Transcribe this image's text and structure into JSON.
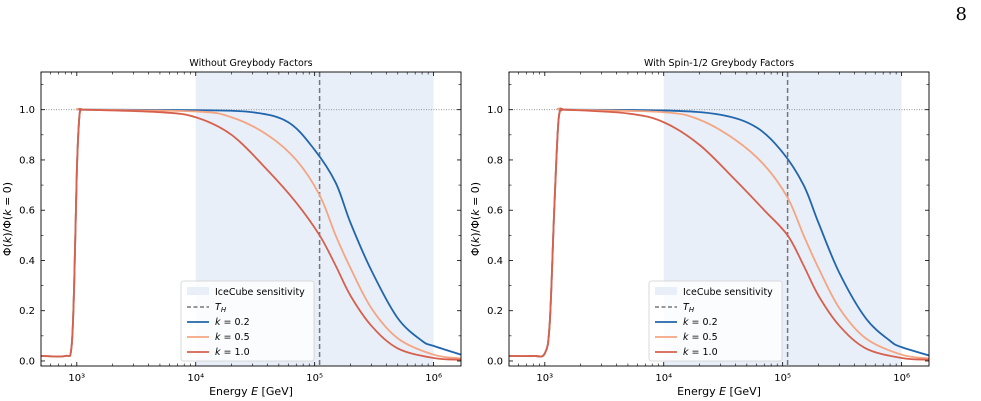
{
  "page": {
    "number": "8"
  },
  "chart_data": [
    {
      "type": "line",
      "title": "Without Greybody Factors",
      "xlabel": "Energy E [GeV]",
      "ylabel": "Φ(k)/Φ(k = 0)",
      "xscale": "log",
      "xlim": [
        500,
        1700000
      ],
      "ylim": [
        -0.02,
        1.15
      ],
      "xticks": [
        "10³",
        "10⁴",
        "10⁵",
        "10⁶"
      ],
      "yticks": [
        "0.0",
        "0.2",
        "0.4",
        "0.6",
        "0.8",
        "1.0"
      ],
      "shaded_band": {
        "x": [
          10000,
          1000000
        ],
        "label": "IceCube sensitivity",
        "color": "#e9eff8"
      },
      "vline": {
        "x": 110000,
        "label": "T_H",
        "color": "#777777"
      },
      "hline": {
        "y": 1.0,
        "style": "dotted"
      },
      "legend_position": "lower-center",
      "series": [
        {
          "name": "k = 0.2",
          "k": 0.2,
          "color": "#2166ac",
          "x": [
            500,
            800,
            900,
            950,
            1000,
            1050,
            1100,
            1200,
            10000,
            30000,
            60000,
            100000,
            150000,
            200000,
            300000,
            500000,
            800000,
            1000000,
            1700000
          ],
          "y": [
            0.02,
            0.02,
            0.05,
            0.3,
            0.75,
            0.97,
            1.0,
            1.0,
            0.998,
            0.99,
            0.95,
            0.84,
            0.71,
            0.55,
            0.36,
            0.17,
            0.08,
            0.06,
            0.025
          ]
        },
        {
          "name": "k = 0.5",
          "k": 0.5,
          "color": "#f4a582",
          "x": [
            500,
            800,
            900,
            950,
            1000,
            1050,
            1100,
            1200,
            10000,
            20000,
            40000,
            70000,
            110000,
            150000,
            200000,
            300000,
            500000,
            1000000,
            1700000
          ],
          "y": [
            0.02,
            0.02,
            0.05,
            0.3,
            0.75,
            0.97,
            1.0,
            1.0,
            0.993,
            0.97,
            0.9,
            0.8,
            0.66,
            0.5,
            0.37,
            0.21,
            0.09,
            0.025,
            0.01
          ]
        },
        {
          "name": "k = 1.0",
          "k": 1.0,
          "color": "#d6604d",
          "x": [
            500,
            800,
            900,
            950,
            1000,
            1050,
            1100,
            1200,
            5000,
            10000,
            20000,
            40000,
            70000,
            110000,
            150000,
            200000,
            300000,
            500000,
            1000000,
            1700000
          ],
          "y": [
            0.02,
            0.02,
            0.05,
            0.3,
            0.75,
            0.97,
            1.0,
            1.0,
            0.99,
            0.97,
            0.9,
            0.76,
            0.63,
            0.5,
            0.38,
            0.26,
            0.14,
            0.05,
            0.012,
            0.005
          ]
        }
      ]
    },
    {
      "type": "line",
      "title": "With Spin-1/2 Greybody Factors",
      "xlabel": "Energy E [GeV]",
      "ylabel": "Φ(k)/Φ(k = 0)",
      "xscale": "log",
      "xlim": [
        500,
        1700000
      ],
      "ylim": [
        -0.02,
        1.15
      ],
      "xticks": [
        "10³",
        "10⁴",
        "10⁵",
        "10⁶"
      ],
      "yticks": [
        "0.0",
        "0.2",
        "0.4",
        "0.6",
        "0.8",
        "1.0"
      ],
      "shaded_band": {
        "x": [
          10000,
          1000000
        ],
        "label": "IceCube sensitivity",
        "color": "#e9eff8"
      },
      "vline": {
        "x": 110000,
        "label": "T_H",
        "color": "#777777"
      },
      "hline": {
        "y": 1.0,
        "style": "dotted"
      },
      "legend_position": "lower-center",
      "series": [
        {
          "name": "k = 0.2",
          "k": 0.2,
          "color": "#2166ac",
          "x": [
            500,
            800,
            1000,
            1100,
            1200,
            1300,
            1400,
            1500,
            10000,
            30000,
            60000,
            100000,
            150000,
            200000,
            300000,
            500000,
            800000,
            1000000,
            1700000
          ],
          "y": [
            0.02,
            0.02,
            0.03,
            0.15,
            0.6,
            0.95,
            1.0,
            1.0,
            0.997,
            0.98,
            0.93,
            0.83,
            0.7,
            0.55,
            0.35,
            0.17,
            0.08,
            0.055,
            0.022
          ]
        },
        {
          "name": "k = 0.5",
          "k": 0.5,
          "color": "#f4a582",
          "x": [
            500,
            800,
            1000,
            1100,
            1200,
            1300,
            1400,
            1500,
            10000,
            20000,
            40000,
            70000,
            110000,
            150000,
            200000,
            300000,
            500000,
            1000000,
            1700000
          ],
          "y": [
            0.02,
            0.02,
            0.03,
            0.15,
            0.6,
            0.95,
            1.0,
            1.0,
            0.99,
            0.96,
            0.88,
            0.78,
            0.65,
            0.5,
            0.37,
            0.21,
            0.09,
            0.025,
            0.01
          ]
        },
        {
          "name": "k = 1.0",
          "k": 1.0,
          "color": "#d6604d",
          "x": [
            500,
            800,
            1000,
            1100,
            1200,
            1300,
            1400,
            1500,
            5000,
            10000,
            20000,
            40000,
            70000,
            110000,
            150000,
            200000,
            300000,
            500000,
            1000000,
            1700000
          ],
          "y": [
            0.02,
            0.02,
            0.03,
            0.15,
            0.6,
            0.95,
            1.0,
            1.0,
            0.985,
            0.95,
            0.86,
            0.72,
            0.6,
            0.5,
            0.38,
            0.26,
            0.14,
            0.05,
            0.012,
            0.005
          ]
        }
      ]
    }
  ]
}
